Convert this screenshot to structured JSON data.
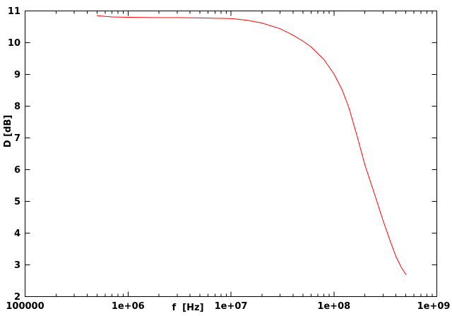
{
  "chart_data": {
    "type": "line",
    "title": "",
    "xlabel": "f  [Hz]",
    "ylabel": "D [dB]",
    "x_scale": "log",
    "y_scale": "linear",
    "x_range": [
      100000,
      1000000000
    ],
    "y_range": [
      2,
      11
    ],
    "grid": false,
    "legend": "none",
    "x_ticks": [
      {
        "label": "100000",
        "value": 100000
      },
      {
        "label": "1e+06",
        "value": 1000000
      },
      {
        "label": "1e+07",
        "value": 10000000
      },
      {
        "label": "1e+08",
        "value": 100000000
      },
      {
        "label": "1e+09",
        "value": 1000000000
      }
    ],
    "y_ticks": [
      {
        "label": "2",
        "value": 2
      },
      {
        "label": "3",
        "value": 3
      },
      {
        "label": "4",
        "value": 4
      },
      {
        "label": "5",
        "value": 5
      },
      {
        "label": "6",
        "value": 6
      },
      {
        "label": "7",
        "value": 7
      },
      {
        "label": "8",
        "value": 8
      },
      {
        "label": "9",
        "value": 9
      },
      {
        "label": "10",
        "value": 10
      },
      {
        "label": "11",
        "value": 11
      }
    ],
    "series": [
      {
        "color": "#ff0000",
        "points": [
          [
            500000,
            10.85
          ],
          [
            700000,
            10.81
          ],
          [
            1000000,
            10.8
          ],
          [
            2000000,
            10.79
          ],
          [
            3000000,
            10.79
          ],
          [
            5000000,
            10.78
          ],
          [
            7000000,
            10.77
          ],
          [
            10000000,
            10.76
          ],
          [
            14000000,
            10.71
          ],
          [
            20000000,
            10.62
          ],
          [
            30000000,
            10.44
          ],
          [
            40000000,
            10.24
          ],
          [
            50000000,
            10.05
          ],
          [
            60000000,
            9.87
          ],
          [
            80000000,
            9.47
          ],
          [
            100000000,
            9.02
          ],
          [
            120000000,
            8.52
          ],
          [
            140000000,
            7.95
          ],
          [
            170000000,
            7.0
          ],
          [
            200000000,
            6.15
          ],
          [
            250000000,
            5.2
          ],
          [
            300000000,
            4.4
          ],
          [
            350000000,
            3.78
          ],
          [
            400000000,
            3.27
          ],
          [
            450000000,
            2.93
          ],
          [
            500000000,
            2.7
          ]
        ]
      }
    ]
  },
  "colors": {
    "background": "#ffffff",
    "axis": "#000000",
    "text": "#000000",
    "curve": "#ff0000"
  }
}
